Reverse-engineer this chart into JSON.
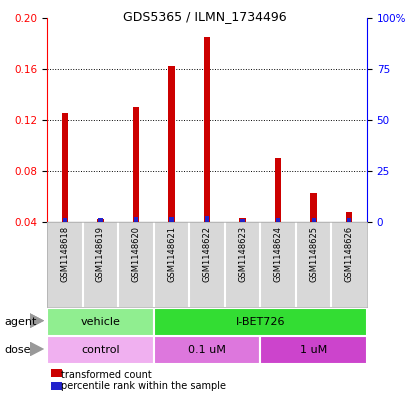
{
  "title": "GDS5365 / ILMN_1734496",
  "samples": [
    "GSM1148618",
    "GSM1148619",
    "GSM1148620",
    "GSM1148621",
    "GSM1148622",
    "GSM1148623",
    "GSM1148624",
    "GSM1148625",
    "GSM1148626"
  ],
  "red_values": [
    0.125,
    0.042,
    0.13,
    0.162,
    0.185,
    0.043,
    0.09,
    0.063,
    0.048
  ],
  "blue_values": [
    0.043,
    0.043,
    0.044,
    0.044,
    0.045,
    0.042,
    0.043,
    0.043,
    0.043
  ],
  "ylim_left": [
    0.04,
    0.2
  ],
  "ylim_right": [
    0,
    100
  ],
  "yticks_left": [
    0.04,
    0.08,
    0.12,
    0.16,
    0.2
  ],
  "yticks_right": [
    0,
    25,
    50,
    75,
    100
  ],
  "ytick_labels_right": [
    "0",
    "25",
    "50",
    "75",
    "100%"
  ],
  "agent_groups": [
    {
      "label": "vehicle",
      "start": 0,
      "end": 3,
      "color": "#90ee90"
    },
    {
      "label": "I-BET726",
      "start": 3,
      "end": 9,
      "color": "#33dd33"
    }
  ],
  "dose_groups": [
    {
      "label": "control",
      "start": 0,
      "end": 3,
      "color": "#f0b0f0"
    },
    {
      "label": "0.1 uM",
      "start": 3,
      "end": 6,
      "color": "#dd77dd"
    },
    {
      "label": "1 uM",
      "start": 6,
      "end": 9,
      "color": "#cc44cc"
    }
  ],
  "legend_items": [
    {
      "label": "transformed count",
      "color": "#cc0000"
    },
    {
      "label": "percentile rank within the sample",
      "color": "#0000cc"
    }
  ],
  "red_bar_width": 0.18,
  "blue_bar_width": 0.12,
  "red_color": "#cc0000",
  "blue_color": "#2222cc",
  "grid_color": "#888888",
  "cell_bg": "#d8d8d8",
  "plot_bg": "#ffffff",
  "agent_label": "agent",
  "dose_label": "dose"
}
